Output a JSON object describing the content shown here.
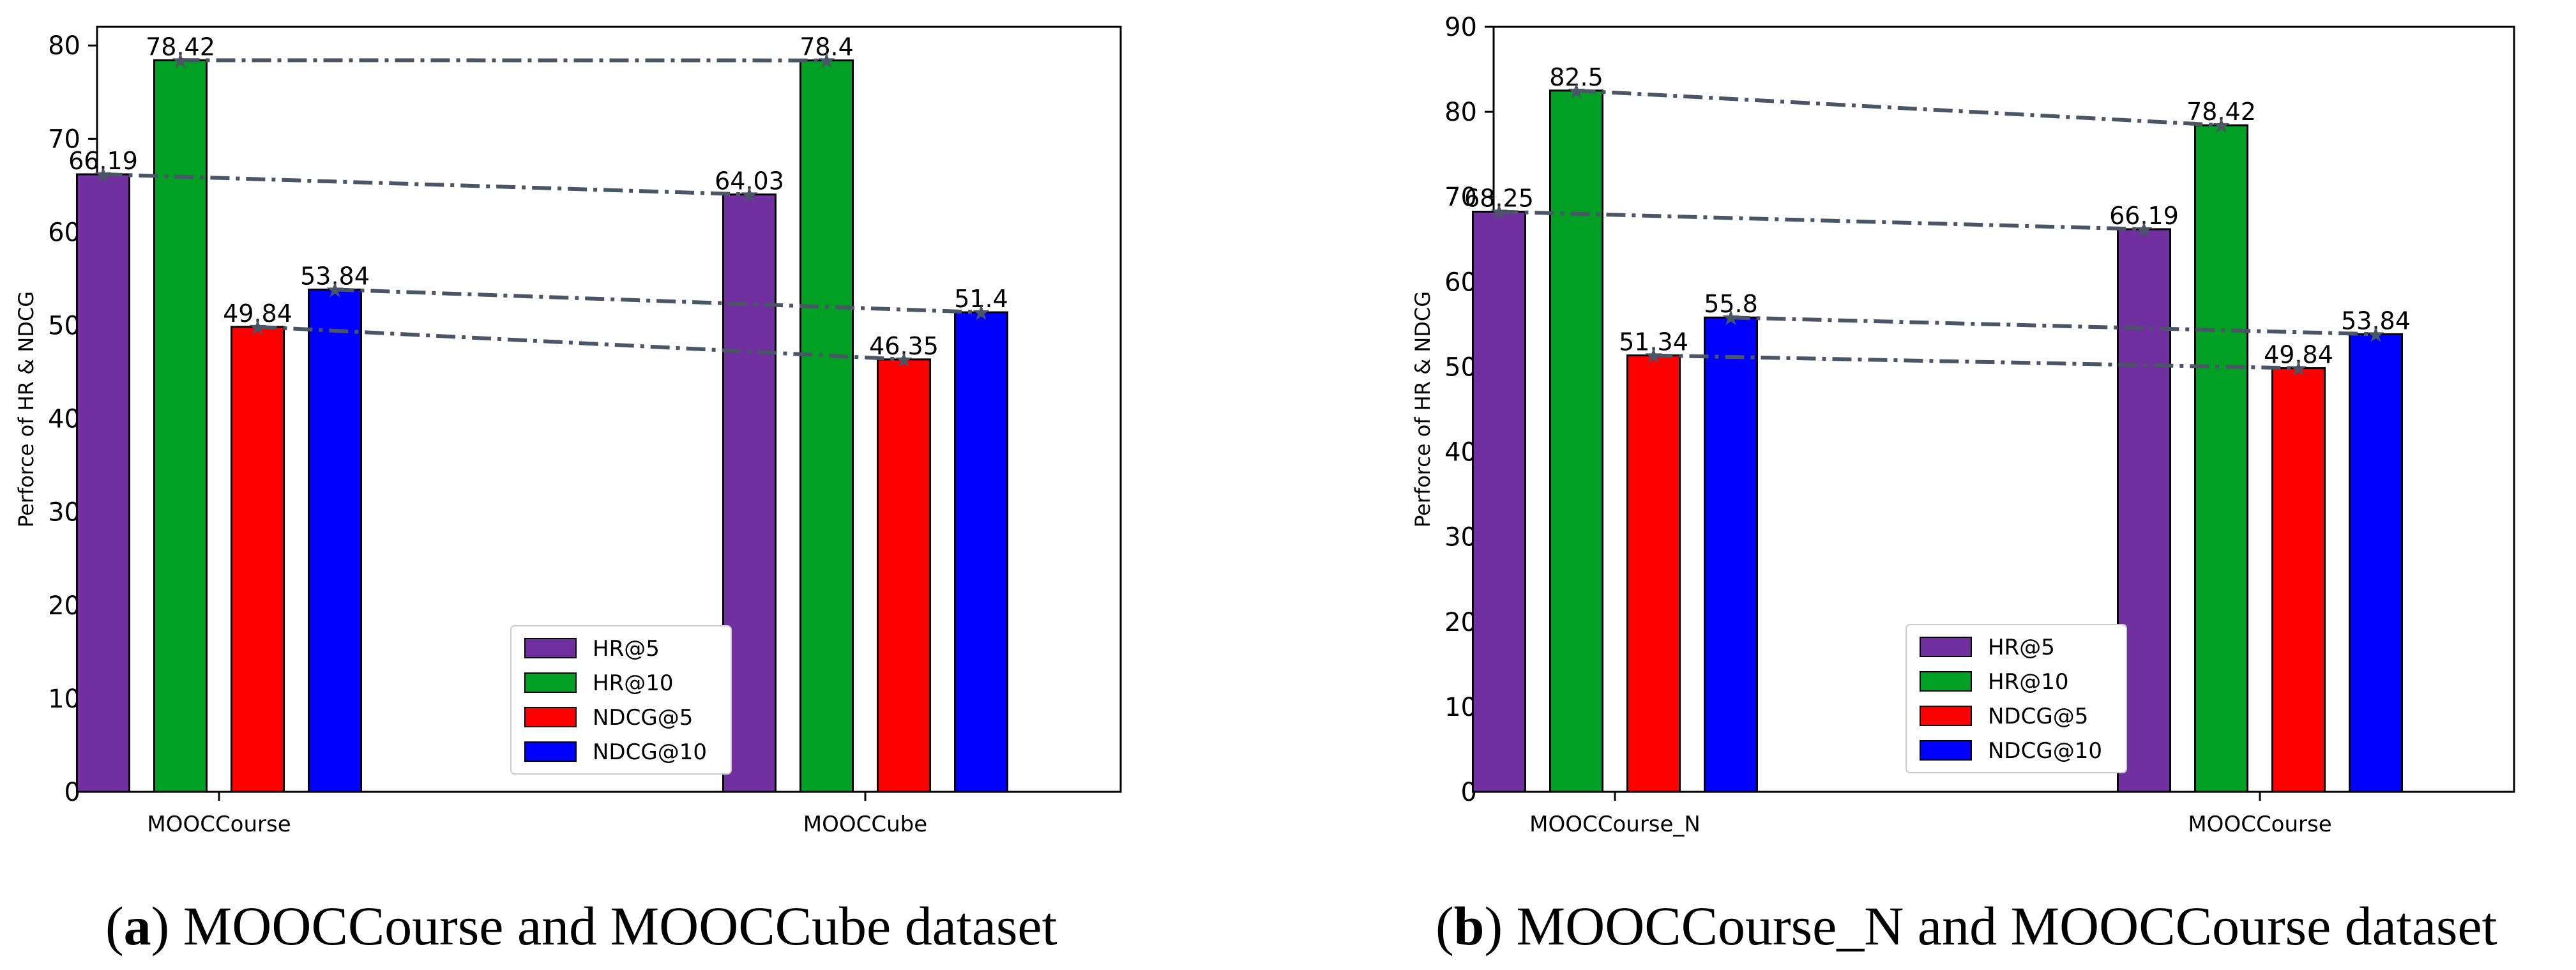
{
  "colors": {
    "HR@5": "#7030a0",
    "HR@10": "#00a024",
    "NDCG@5": "#ff0000",
    "NDCG@10": "#0000ff",
    "trend_line": "#4a5566"
  },
  "chart_data": [
    {
      "type": "bar",
      "id": "a",
      "ylabel": "Perforce of HR & NDCG",
      "xlabel": "",
      "ylim": [
        0,
        82
      ],
      "yticks": [
        0,
        10,
        20,
        30,
        40,
        50,
        60,
        70,
        80
      ],
      "categories": [
        "MOOCCourse",
        "MOOCCube"
      ],
      "series": [
        {
          "name": "HR@5",
          "values": [
            66.19,
            64.03
          ],
          "labels": [
            "66.19",
            "64.03"
          ]
        },
        {
          "name": "HR@10",
          "values": [
            78.42,
            78.4
          ],
          "labels": [
            "78.42",
            "78.4"
          ]
        },
        {
          "name": "NDCG@5",
          "values": [
            49.84,
            46.35
          ],
          "labels": [
            "49.84",
            "46.35"
          ]
        },
        {
          "name": "NDCG@10",
          "values": [
            53.84,
            51.4
          ],
          "labels": [
            "53.84",
            "51.4"
          ]
        }
      ],
      "legend": "lower-right",
      "caption_label": "a",
      "caption_text": "MOOCCourse and MOOCCube dataset"
    },
    {
      "type": "bar",
      "id": "b",
      "ylabel": "Perforce of HR & NDCG",
      "xlabel": "",
      "ylim": [
        0,
        90
      ],
      "yticks": [
        0,
        10,
        20,
        30,
        40,
        50,
        60,
        70,
        80,
        90
      ],
      "categories": [
        "MOOCCourse_N",
        "MOOCCourse"
      ],
      "series": [
        {
          "name": "HR@5",
          "values": [
            68.25,
            66.19
          ],
          "labels": [
            "68.25",
            "66.19"
          ]
        },
        {
          "name": "HR@10",
          "values": [
            82.5,
            78.42
          ],
          "labels": [
            "82.5",
            "78.42"
          ]
        },
        {
          "name": "NDCG@5",
          "values": [
            51.34,
            49.84
          ],
          "labels": [
            "51.34",
            "49.84"
          ]
        },
        {
          "name": "NDCG@10",
          "values": [
            55.8,
            53.84
          ],
          "labels": [
            "55.8",
            "53.84"
          ]
        }
      ],
      "legend": "lower-left",
      "caption_label": "b",
      "caption_text": "MOOCCourse_N and MOOCCourse dataset"
    }
  ]
}
